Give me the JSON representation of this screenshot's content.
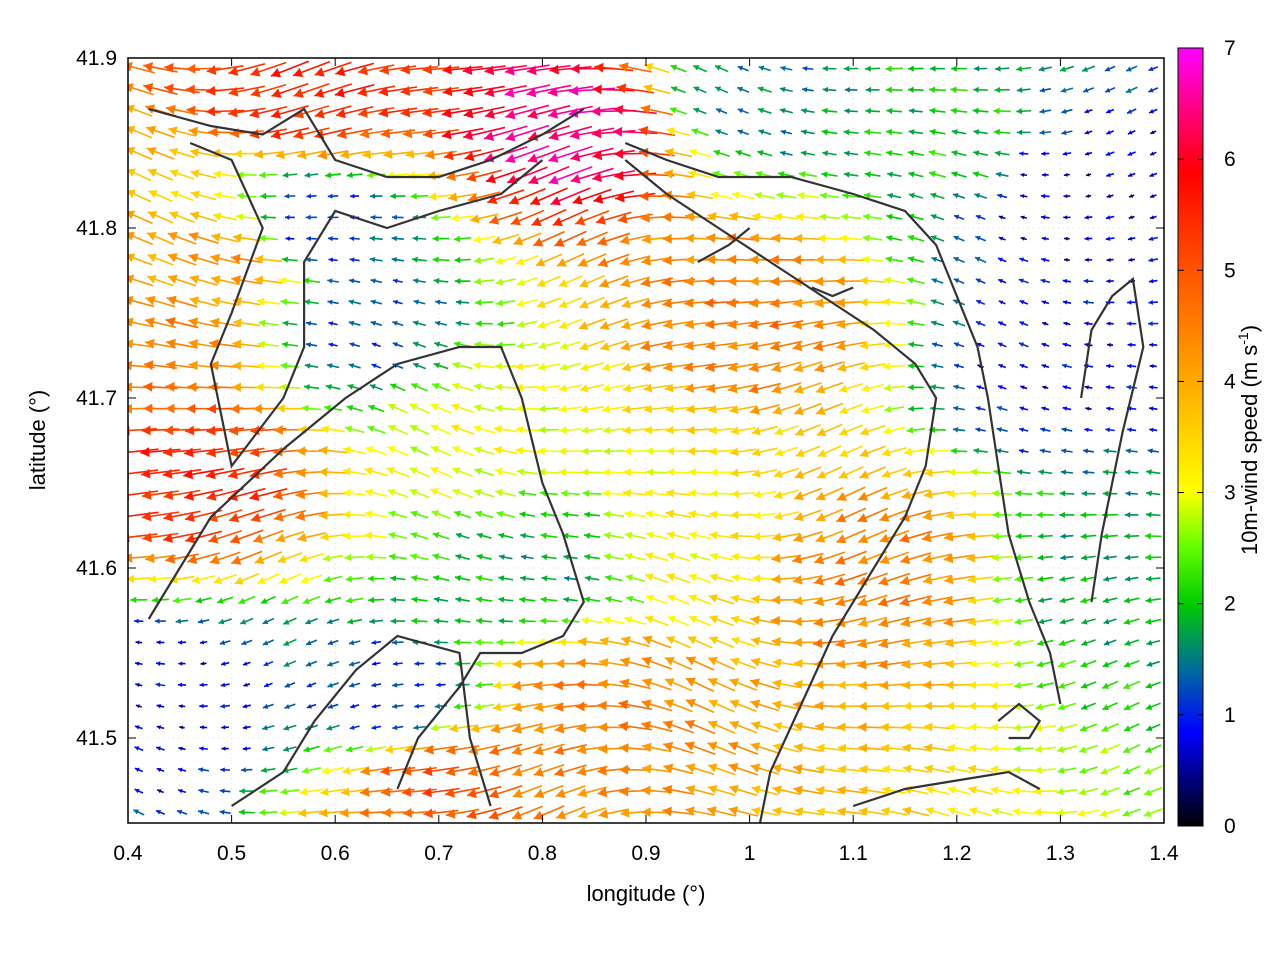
{
  "chart_data": {
    "type": "vector_field",
    "xlabel": "longitude (°)",
    "ylabel": "latitude (°)",
    "xlim": [
      0.4,
      1.4
    ],
    "ylim": [
      41.45,
      41.9
    ],
    "xticks": [
      "0.4",
      "0.5",
      "0.6",
      "0.7",
      "0.8",
      "0.9",
      "1",
      "1.1",
      "1.2",
      "1.3",
      "1.4"
    ],
    "yticks": [
      "41.5",
      "41.6",
      "41.7",
      "41.8",
      "41.9"
    ],
    "colorbar": {
      "label_main": "10m-wind speed (m s",
      "label_sup": "-1",
      "label_close": ")",
      "range": [
        0,
        7
      ],
      "ticks": [
        "0",
        "1",
        "2",
        "3",
        "4",
        "5",
        "6",
        "7"
      ],
      "palette": [
        "#000000",
        "#0000ff",
        "#00cc00",
        "#ffff00",
        "#ff0000",
        "#ff00ff"
      ]
    },
    "wind_direction": "predominantly from east (arrows pointing west)",
    "speed_regions": [
      {
        "lon": 0.46,
        "lat": 41.66,
        "speed": 5.5
      },
      {
        "lon": 0.44,
        "lat": 41.72,
        "speed": 4.5
      },
      {
        "lon": 0.5,
        "lat": 41.78,
        "speed": 4.2
      },
      {
        "lon": 0.7,
        "lat": 41.48,
        "speed": 5.0
      },
      {
        "lon": 0.83,
        "lat": 41.86,
        "speed": 6.5
      },
      {
        "lon": 0.58,
        "lat": 41.88,
        "speed": 5.5
      },
      {
        "lon": 0.85,
        "lat": 41.52,
        "speed": 4.5
      },
      {
        "lon": 1.12,
        "lat": 41.6,
        "speed": 4.5
      },
      {
        "lon": 1.0,
        "lat": 41.75,
        "speed": 4.5
      },
      {
        "lon": 0.62,
        "lat": 41.74,
        "speed": 1.2
      },
      {
        "lon": 0.58,
        "lat": 41.8,
        "speed": 1.0
      },
      {
        "lon": 0.66,
        "lat": 41.52,
        "speed": 1.0
      },
      {
        "lon": 0.44,
        "lat": 41.52,
        "speed": 0.7
      },
      {
        "lon": 0.8,
        "lat": 41.6,
        "speed": 1.8
      },
      {
        "lon": 1.3,
        "lat": 41.72,
        "speed": 0.8
      },
      {
        "lon": 1.3,
        "lat": 41.82,
        "speed": 0.6
      },
      {
        "lon": 1.35,
        "lat": 41.6,
        "speed": 1.8
      },
      {
        "lon": 1.0,
        "lat": 41.88,
        "speed": 1.5
      },
      {
        "lon": 1.2,
        "lat": 41.85,
        "speed": 2.0
      },
      {
        "lon": 0.95,
        "lat": 41.62,
        "speed": 3.2
      },
      {
        "lon": 0.75,
        "lat": 41.68,
        "speed": 3.0
      }
    ],
    "contours": [
      [
        [
          0.42,
          41.87
        ],
        [
          0.48,
          41.86
        ],
        [
          0.53,
          41.855
        ],
        [
          0.57,
          41.87
        ],
        [
          0.6,
          41.84
        ],
        [
          0.65,
          41.83
        ],
        [
          0.7,
          41.83
        ],
        [
          0.75,
          41.84
        ],
        [
          0.8,
          41.855
        ],
        [
          0.84,
          41.87
        ]
      ],
      [
        [
          0.46,
          41.85
        ],
        [
          0.5,
          41.84
        ],
        [
          0.53,
          41.8
        ],
        [
          0.5,
          41.75
        ],
        [
          0.48,
          41.72
        ],
        [
          0.5,
          41.66
        ],
        [
          0.55,
          41.7
        ],
        [
          0.57,
          41.73
        ],
        [
          0.57,
          41.78
        ],
        [
          0.6,
          41.81
        ],
        [
          0.65,
          41.8
        ],
        [
          0.7,
          41.81
        ],
        [
          0.76,
          41.82
        ],
        [
          0.8,
          41.84
        ]
      ],
      [
        [
          0.42,
          41.57
        ],
        [
          0.45,
          41.6
        ],
        [
          0.48,
          41.63
        ],
        [
          0.55,
          41.67
        ],
        [
          0.61,
          41.7
        ],
        [
          0.66,
          41.72
        ],
        [
          0.72,
          41.73
        ],
        [
          0.76,
          41.73
        ],
        [
          0.78,
          41.7
        ],
        [
          0.8,
          41.65
        ],
        [
          0.82,
          41.62
        ],
        [
          0.84,
          41.58
        ],
        [
          0.82,
          41.56
        ],
        [
          0.78,
          41.55
        ],
        [
          0.74,
          41.55
        ],
        [
          0.72,
          41.53
        ],
        [
          0.68,
          41.5
        ],
        [
          0.66,
          41.47
        ]
      ],
      [
        [
          0.5,
          41.46
        ],
        [
          0.55,
          41.48
        ],
        [
          0.58,
          41.51
        ],
        [
          0.62,
          41.54
        ],
        [
          0.66,
          41.56
        ],
        [
          0.72,
          41.55
        ],
        [
          0.73,
          41.5
        ],
        [
          0.75,
          41.46
        ]
      ],
      [
        [
          0.88,
          41.84
        ],
        [
          0.92,
          41.82
        ],
        [
          0.97,
          41.8
        ],
        [
          1.02,
          41.78
        ],
        [
          1.07,
          41.76
        ],
        [
          1.12,
          41.74
        ],
        [
          1.16,
          41.72
        ],
        [
          1.18,
          41.7
        ],
        [
          1.17,
          41.66
        ],
        [
          1.15,
          41.63
        ],
        [
          1.12,
          41.6
        ],
        [
          1.08,
          41.56
        ],
        [
          1.05,
          41.52
        ],
        [
          1.02,
          41.48
        ],
        [
          1.01,
          41.45
        ]
      ],
      [
        [
          0.88,
          41.85
        ],
        [
          0.92,
          41.84
        ],
        [
          0.97,
          41.83
        ],
        [
          1.04,
          41.83
        ],
        [
          1.1,
          41.82
        ],
        [
          1.15,
          41.81
        ],
        [
          1.18,
          41.79
        ],
        [
          1.2,
          41.76
        ],
        [
          1.22,
          41.73
        ],
        [
          1.23,
          41.7
        ],
        [
          1.24,
          41.66
        ],
        [
          1.25,
          41.62
        ],
        [
          1.27,
          41.58
        ],
        [
          1.29,
          41.55
        ],
        [
          1.3,
          41.52
        ]
      ],
      [
        [
          1.1,
          41.46
        ],
        [
          1.15,
          41.47
        ],
        [
          1.2,
          41.475
        ],
        [
          1.25,
          41.48
        ],
        [
          1.28,
          41.47
        ]
      ],
      [
        [
          1.32,
          41.7
        ],
        [
          1.33,
          41.74
        ],
        [
          1.35,
          41.76
        ],
        [
          1.37,
          41.77
        ],
        [
          1.38,
          41.73
        ],
        [
          1.36,
          41.68
        ],
        [
          1.34,
          41.62
        ],
        [
          1.33,
          41.58
        ]
      ],
      [
        [
          1.24,
          41.51
        ],
        [
          1.26,
          41.52
        ],
        [
          1.28,
          41.51
        ],
        [
          1.27,
          41.5
        ],
        [
          1.25,
          41.5
        ]
      ],
      [
        [
          1.06,
          41.765
        ],
        [
          1.08,
          41.76
        ],
        [
          1.1,
          41.765
        ]
      ],
      [
        [
          0.95,
          41.78
        ],
        [
          0.98,
          41.79
        ],
        [
          1.0,
          41.8
        ]
      ]
    ]
  }
}
